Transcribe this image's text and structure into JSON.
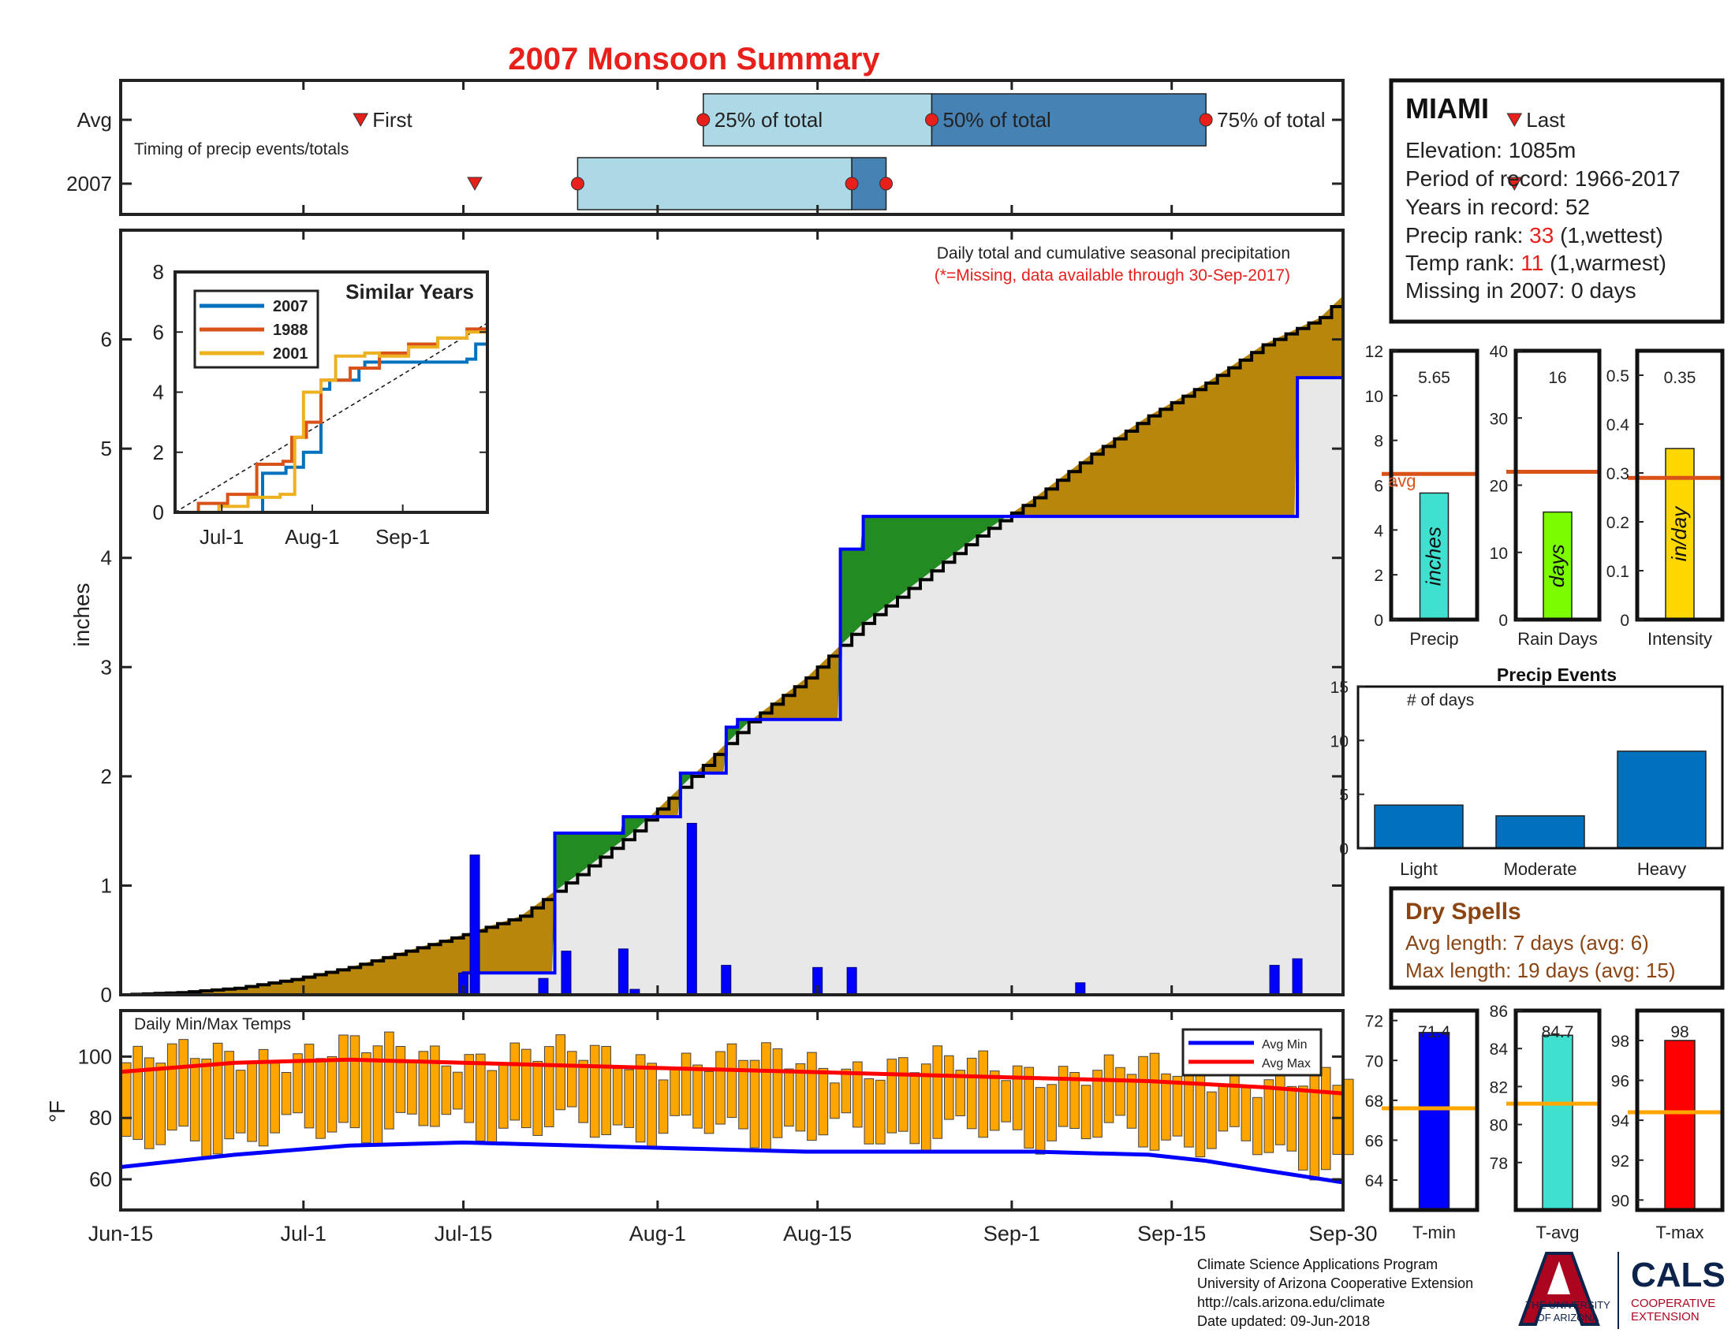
{
  "page": {
    "title": "2007 Monsoon Summary",
    "footer": {
      "lines": [
        "Climate Science Applications Program",
        "University of Arizona Cooperative Extension",
        "http://cals.arizona.edu/climate",
        " Date updated: 09-Jun-2018"
      ],
      "logo_ua_lines": [
        "THE UNIVERSITY",
        "OF ARIZONA"
      ],
      "logo_cals": "CALS",
      "logo_cals_sub": [
        "COOPERATIVE",
        "EXTENSION"
      ]
    }
  },
  "info_box": {
    "station": "MIAMI",
    "elevation": "Elevation: 1085m",
    "period": "Period of record: 1966-2017",
    "years": "Years in record: 52",
    "precip_rank_prefix": "Precip rank: ",
    "precip_rank_value": "33",
    "precip_rank_suffix": " (1,wettest)",
    "temp_rank_prefix": "Temp rank: ",
    "temp_rank_value": "11",
    "temp_rank_suffix": " (1,warmest)",
    "missing": "Missing in 2007: 0 days",
    "highlight_color": "#e8201c"
  },
  "dry_spells": {
    "title": "Dry Spells",
    "avg": "Avg length: 7 days (avg: 6)",
    "max": "Max length: 19 days (avg: 15)",
    "color": "#8b4513"
  },
  "chart_data": [
    {
      "id": "timing",
      "type": "timeline",
      "row_labels": [
        "Avg",
        "2007"
      ],
      "note": "Timing of precip events/totals",
      "avg": {
        "first": 21,
        "p25": 51,
        "p50": 71,
        "p75": 95,
        "last": 122
      },
      "year": {
        "first": 31,
        "p25": 40,
        "p50": 64,
        "p75": 67,
        "last": 122
      },
      "labels": {
        "first": "First",
        "last": "Last",
        "p25": "25% of total",
        "p50": "50% of total",
        "p75": "75% of total"
      },
      "colors": {
        "light": "#add8e6",
        "dark": "#4682b4",
        "marker": "#e8201c"
      }
    },
    {
      "id": "precip",
      "type": "area",
      "ylabel": "inches",
      "ylim": [
        0,
        7
      ],
      "yticks": [
        0,
        1,
        2,
        3,
        4,
        5,
        6
      ],
      "x_tick_labels": [
        "Jun-15",
        "Jul-1",
        "Jul-15",
        "Aug-1",
        "Aug-15",
        "Sep-1",
        "Sep-15",
        "Sep-30"
      ],
      "x_tick_days": [
        0,
        16,
        30,
        47,
        61,
        78,
        92,
        107
      ],
      "annotation": "Daily total and cumulative seasonal precipitation",
      "annotation2": "(*=Missing, data available through 30-Sep-2017)",
      "avg_cumulative": {
        "x": [
          0,
          5,
          10,
          15,
          20,
          25,
          30,
          35,
          40,
          45,
          50,
          55,
          60,
          65,
          70,
          75,
          80,
          85,
          90,
          95,
          100,
          105,
          107
        ],
        "y": [
          0,
          0.02,
          0.06,
          0.14,
          0.25,
          0.4,
          0.55,
          0.72,
          1.1,
          1.5,
          2.0,
          2.5,
          2.9,
          3.4,
          3.8,
          4.2,
          4.55,
          4.95,
          5.3,
          5.6,
          5.95,
          6.2,
          6.4
        ]
      },
      "year_cumulative": {
        "x": [
          0,
          29,
          30,
          37,
          38,
          39,
          43,
          44,
          45,
          49,
          50,
          53,
          54,
          62,
          63,
          64,
          65,
          100,
          101,
          102,
          103,
          107
        ],
        "y": [
          0,
          0,
          0.2,
          0.2,
          1.48,
          1.48,
          1.48,
          1.63,
          1.63,
          2.03,
          2.03,
          2.45,
          2.52,
          2.52,
          4.08,
          4.08,
          4.38,
          4.38,
          4.38,
          4.38,
          5.65,
          5.65
        ]
      },
      "daily_bars": [
        {
          "x": 30,
          "v": 0.2
        },
        {
          "x": 31,
          "v": 1.28
        },
        {
          "x": 37,
          "v": 0.15
        },
        {
          "x": 39,
          "v": 0.4
        },
        {
          "x": 44,
          "v": 0.42
        },
        {
          "x": 45,
          "v": 0.05
        },
        {
          "x": 50,
          "v": 1.57
        },
        {
          "x": 53,
          "v": 0.27
        },
        {
          "x": 61,
          "v": 0.25
        },
        {
          "x": 64,
          "v": 0.25
        },
        {
          "x": 84,
          "v": 0.11
        },
        {
          "x": 101,
          "v": 0.27
        },
        {
          "x": 103,
          "v": 0.33
        }
      ],
      "colors": {
        "below": "#e8e8e8",
        "above_avg": "#228b22",
        "below_avg": "#b8860b",
        "year_line": "#0000ff",
        "avg_line": "#000000",
        "bars": "#0000ff"
      }
    },
    {
      "id": "similar",
      "type": "line",
      "title": "Similar Years",
      "ylim": [
        0,
        8
      ],
      "yticks": [
        0,
        2,
        4,
        6,
        8
      ],
      "x_tick_labels": [
        "Jul-1",
        "Aug-1",
        "Sep-1"
      ],
      "series": [
        {
          "name": "2007",
          "color": "#0072bd",
          "x": [
            0,
            29,
            30,
            38,
            44,
            50,
            53,
            63,
            65,
            100,
            103,
            107
          ],
          "y": [
            0,
            0,
            1.3,
            1.5,
            2.0,
            4.1,
            4.4,
            4.8,
            5.0,
            5.1,
            5.6,
            5.6
          ]
        },
        {
          "name": "1988",
          "color": "#d95319",
          "x": [
            0,
            8,
            18,
            28,
            37,
            40,
            45,
            50,
            60,
            70,
            80,
            90,
            100,
            107
          ],
          "y": [
            0,
            0.3,
            0.6,
            1.6,
            1.7,
            2.5,
            3.0,
            4.4,
            4.8,
            5.3,
            5.6,
            5.8,
            6.1,
            6.2
          ]
        },
        {
          "name": "2001",
          "color": "#edb120",
          "x": [
            0,
            15,
            25,
            36,
            41,
            44,
            50,
            55,
            65,
            70,
            80,
            90,
            100,
            107
          ],
          "y": [
            0,
            0.2,
            0.5,
            0.6,
            2.5,
            4.0,
            4.4,
            5.2,
            5.3,
            5.2,
            5.5,
            5.8,
            6.0,
            6.1
          ]
        }
      ],
      "avg_line": {
        "x": [
          0,
          107
        ],
        "y": [
          0,
          6.3
        ]
      }
    },
    {
      "id": "temps",
      "type": "bar",
      "note": "Daily Min/Max Temps",
      "ylabel": "°F",
      "ylim": [
        50,
        115
      ],
      "yticks": [
        60,
        80,
        100
      ],
      "legend": [
        "Avg Min",
        "Avg Max"
      ],
      "avg_min": {
        "x": [
          0,
          10,
          20,
          30,
          40,
          50,
          60,
          70,
          80,
          90,
          95,
          100,
          107
        ],
        "y": [
          64,
          68,
          71,
          72,
          71,
          70,
          69,
          69,
          69,
          68,
          66,
          63,
          59
        ]
      },
      "avg_max": {
        "x": [
          0,
          10,
          20,
          30,
          40,
          50,
          60,
          70,
          80,
          90,
          100,
          107
        ],
        "y": [
          95,
          98,
          99,
          98,
          97,
          96,
          95,
          94,
          93,
          92,
          90,
          88
        ]
      },
      "colors": {
        "bar": "#ffa500",
        "min": "#0000ff",
        "max": "#ff0000"
      }
    },
    {
      "id": "summary_precip",
      "type": "bar",
      "categories": [
        "Precip",
        "Rain Days",
        "Intensity"
      ],
      "values": [
        5.65,
        16,
        0.35
      ],
      "value_labels": [
        "5.65",
        "16",
        "0.35"
      ],
      "averages": [
        6.5,
        22,
        0.29
      ],
      "ylims": [
        [
          0,
          12
        ],
        [
          0,
          40
        ],
        [
          0,
          0.55
        ]
      ],
      "yticks": [
        [
          0,
          2,
          4,
          6,
          8,
          10,
          12
        ],
        [
          0,
          10,
          20,
          30,
          40
        ],
        [
          0,
          0.1,
          0.2,
          0.3,
          0.4,
          0.5
        ]
      ],
      "units": [
        "inches",
        "days",
        "in/day"
      ],
      "avg_label": "avg",
      "colors": [
        "#40e0d0",
        "#7cfc00",
        "#ffd700"
      ],
      "avg_color": "#d95319"
    },
    {
      "id": "precip_events",
      "type": "bar",
      "title": "Precip Events",
      "note": "# of days",
      "categories": [
        "Light",
        "Moderate",
        "Heavy"
      ],
      "values": [
        4,
        3,
        9
      ],
      "ylim": [
        0,
        15
      ],
      "yticks": [
        0,
        5,
        10,
        15
      ],
      "color": "#0072bd"
    },
    {
      "id": "summary_temps",
      "type": "bar",
      "categories": [
        "T-min",
        "T-avg",
        "T-max"
      ],
      "values": [
        71.4,
        84.7,
        98
      ],
      "value_labels": [
        "71.4",
        "84.7",
        "98"
      ],
      "averages": [
        67.6,
        81.1,
        94.4
      ],
      "ylims": [
        [
          62.5,
          72.5
        ],
        [
          75.5,
          86
        ],
        [
          89.5,
          99.5
        ]
      ],
      "yticks": [
        [
          64,
          66,
          68,
          70,
          72
        ],
        [
          78,
          80,
          82,
          84,
          86
        ],
        [
          90,
          92,
          94,
          96,
          98
        ]
      ],
      "colors": [
        "#0000ff",
        "#40e0d0",
        "#ff0000"
      ],
      "avg_color": "#ffa500"
    }
  ]
}
